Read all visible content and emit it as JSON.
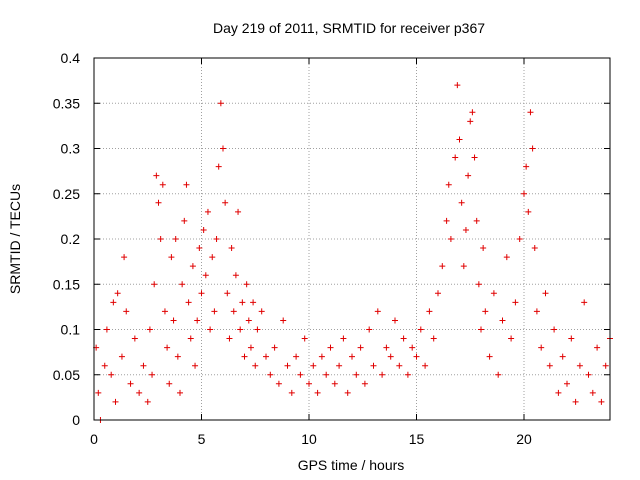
{
  "chart_data": {
    "type": "scatter",
    "title": "Day 219 of 2011, SRMTID for receiver p367",
    "xlabel": "GPS time / hours",
    "ylabel": "SRMTID / TECUs",
    "xlim": [
      0,
      24
    ],
    "ylim": [
      0,
      0.4
    ],
    "x_ticks": [
      0,
      5,
      10,
      15,
      20
    ],
    "x_tick_labels": [
      "0",
      "5",
      "10",
      "15",
      "20"
    ],
    "y_ticks": [
      0,
      0.05,
      0.1,
      0.15,
      0.2,
      0.25,
      0.3,
      0.35,
      0.4
    ],
    "y_tick_labels": [
      "0",
      "0.05",
      "0.1",
      "0.15",
      "0.2",
      "0.25",
      "0.3",
      "0.35",
      "0.4"
    ],
    "grid": true,
    "marker": "plus",
    "color": "#e00000",
    "series": [
      {
        "name": "SRMTID",
        "points": [
          [
            0.1,
            0.08
          ],
          [
            0.2,
            0.03
          ],
          [
            0.3,
            0.0
          ],
          [
            0.5,
            0.06
          ],
          [
            0.6,
            0.1
          ],
          [
            0.8,
            0.05
          ],
          [
            0.9,
            0.13
          ],
          [
            1.0,
            0.02
          ],
          [
            1.1,
            0.14
          ],
          [
            1.3,
            0.07
          ],
          [
            1.4,
            0.18
          ],
          [
            1.5,
            0.12
          ],
          [
            1.7,
            0.04
          ],
          [
            1.9,
            0.09
          ],
          [
            2.1,
            0.03
          ],
          [
            2.3,
            0.06
          ],
          [
            2.5,
            0.02
          ],
          [
            2.6,
            0.1
          ],
          [
            2.7,
            0.05
          ],
          [
            2.8,
            0.15
          ],
          [
            2.9,
            0.27
          ],
          [
            3.0,
            0.24
          ],
          [
            3.1,
            0.2
          ],
          [
            3.2,
            0.26
          ],
          [
            3.3,
            0.12
          ],
          [
            3.4,
            0.08
          ],
          [
            3.5,
            0.04
          ],
          [
            3.6,
            0.18
          ],
          [
            3.7,
            0.11
          ],
          [
            3.8,
            0.2
          ],
          [
            3.9,
            0.07
          ],
          [
            4.0,
            0.03
          ],
          [
            4.1,
            0.15
          ],
          [
            4.2,
            0.22
          ],
          [
            4.3,
            0.26
          ],
          [
            4.4,
            0.13
          ],
          [
            4.5,
            0.09
          ],
          [
            4.6,
            0.17
          ],
          [
            4.7,
            0.06
          ],
          [
            4.8,
            0.11
          ],
          [
            4.9,
            0.19
          ],
          [
            5.0,
            0.14
          ],
          [
            5.1,
            0.21
          ],
          [
            5.2,
            0.16
          ],
          [
            5.3,
            0.23
          ],
          [
            5.4,
            0.1
          ],
          [
            5.5,
            0.18
          ],
          [
            5.6,
            0.12
          ],
          [
            5.7,
            0.2
          ],
          [
            5.8,
            0.28
          ],
          [
            5.9,
            0.35
          ],
          [
            6.0,
            0.3
          ],
          [
            6.1,
            0.24
          ],
          [
            6.2,
            0.14
          ],
          [
            6.3,
            0.09
          ],
          [
            6.4,
            0.19
          ],
          [
            6.5,
            0.12
          ],
          [
            6.6,
            0.16
          ],
          [
            6.7,
            0.23
          ],
          [
            6.8,
            0.1
          ],
          [
            6.9,
            0.13
          ],
          [
            7.0,
            0.07
          ],
          [
            7.1,
            0.15
          ],
          [
            7.2,
            0.11
          ],
          [
            7.3,
            0.08
          ],
          [
            7.4,
            0.13
          ],
          [
            7.5,
            0.06
          ],
          [
            7.6,
            0.1
          ],
          [
            7.8,
            0.12
          ],
          [
            8.0,
            0.07
          ],
          [
            8.2,
            0.05
          ],
          [
            8.4,
            0.08
          ],
          [
            8.6,
            0.04
          ],
          [
            8.8,
            0.11
          ],
          [
            9.0,
            0.06
          ],
          [
            9.2,
            0.03
          ],
          [
            9.4,
            0.07
          ],
          [
            9.6,
            0.05
          ],
          [
            9.8,
            0.09
          ],
          [
            10.0,
            0.04
          ],
          [
            10.2,
            0.06
          ],
          [
            10.4,
            0.03
          ],
          [
            10.6,
            0.07
          ],
          [
            10.8,
            0.05
          ],
          [
            11.0,
            0.08
          ],
          [
            11.2,
            0.04
          ],
          [
            11.4,
            0.06
          ],
          [
            11.6,
            0.09
          ],
          [
            11.8,
            0.03
          ],
          [
            12.0,
            0.07
          ],
          [
            12.2,
            0.05
          ],
          [
            12.4,
            0.08
          ],
          [
            12.6,
            0.04
          ],
          [
            12.8,
            0.1
          ],
          [
            13.0,
            0.06
          ],
          [
            13.2,
            0.12
          ],
          [
            13.4,
            0.05
          ],
          [
            13.6,
            0.08
          ],
          [
            13.8,
            0.07
          ],
          [
            14.0,
            0.11
          ],
          [
            14.2,
            0.06
          ],
          [
            14.4,
            0.09
          ],
          [
            14.6,
            0.05
          ],
          [
            14.8,
            0.08
          ],
          [
            15.0,
            0.07
          ],
          [
            15.2,
            0.1
          ],
          [
            15.4,
            0.06
          ],
          [
            15.6,
            0.12
          ],
          [
            15.8,
            0.09
          ],
          [
            16.0,
            0.14
          ],
          [
            16.2,
            0.17
          ],
          [
            16.4,
            0.22
          ],
          [
            16.5,
            0.26
          ],
          [
            16.6,
            0.2
          ],
          [
            16.8,
            0.29
          ],
          [
            16.9,
            0.37
          ],
          [
            17.0,
            0.31
          ],
          [
            17.1,
            0.24
          ],
          [
            17.2,
            0.17
          ],
          [
            17.3,
            0.21
          ],
          [
            17.4,
            0.27
          ],
          [
            17.5,
            0.33
          ],
          [
            17.6,
            0.34
          ],
          [
            17.7,
            0.29
          ],
          [
            17.8,
            0.22
          ],
          [
            17.9,
            0.15
          ],
          [
            18.0,
            0.1
          ],
          [
            18.1,
            0.19
          ],
          [
            18.2,
            0.12
          ],
          [
            18.4,
            0.07
          ],
          [
            18.6,
            0.14
          ],
          [
            18.8,
            0.05
          ],
          [
            19.0,
            0.11
          ],
          [
            19.2,
            0.18
          ],
          [
            19.4,
            0.09
          ],
          [
            19.6,
            0.13
          ],
          [
            19.8,
            0.2
          ],
          [
            20.0,
            0.25
          ],
          [
            20.1,
            0.28
          ],
          [
            20.2,
            0.23
          ],
          [
            20.3,
            0.34
          ],
          [
            20.4,
            0.3
          ],
          [
            20.5,
            0.19
          ],
          [
            20.6,
            0.12
          ],
          [
            20.8,
            0.08
          ],
          [
            21.0,
            0.14
          ],
          [
            21.2,
            0.06
          ],
          [
            21.4,
            0.1
          ],
          [
            21.6,
            0.03
          ],
          [
            21.8,
            0.07
          ],
          [
            22.0,
            0.04
          ],
          [
            22.2,
            0.09
          ],
          [
            22.4,
            0.02
          ],
          [
            22.6,
            0.06
          ],
          [
            22.8,
            0.13
          ],
          [
            23.0,
            0.05
          ],
          [
            23.2,
            0.03
          ],
          [
            23.4,
            0.08
          ],
          [
            23.6,
            0.02
          ],
          [
            23.8,
            0.06
          ],
          [
            24.0,
            0.09
          ]
        ]
      }
    ]
  }
}
